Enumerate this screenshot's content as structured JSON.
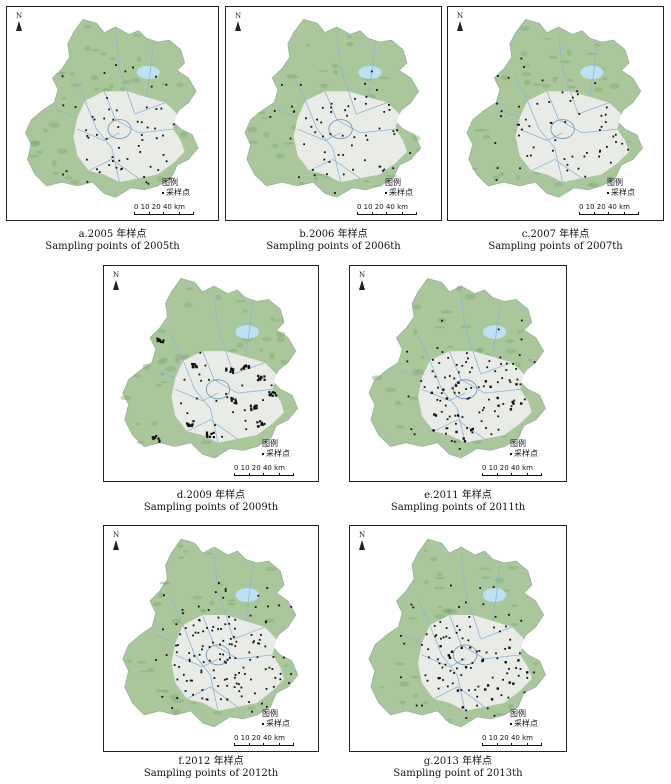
{
  "maps": [
    {
      "id": "a",
      "caption_cn": "a.2005 年样点",
      "caption_en": "Sampling points of 2005th",
      "points": "sparse"
    },
    {
      "id": "b",
      "caption_cn": "b.2006 年样点",
      "caption_en": "Sampling points of 2006th",
      "points": "sparse"
    },
    {
      "id": "c",
      "caption_cn": "c.2007 年样点",
      "caption_en": "Sampling points of 2007th",
      "points": "sparse"
    },
    {
      "id": "d",
      "caption_cn": "d.2009 年样点",
      "caption_en": "Sampling points of 2009th",
      "points": "clustered"
    },
    {
      "id": "e",
      "caption_cn": "e.2011 年样点",
      "caption_en": "Sampling points of 2011th",
      "points": "medium"
    },
    {
      "id": "f",
      "caption_cn": "f.2012 年样点",
      "caption_en": "Sampling points of 2012th",
      "points": "dense"
    },
    {
      "id": "g",
      "caption_cn": "g.2013 年样点",
      "caption_en": "Sampling point of 2013th",
      "points": "medium"
    }
  ],
  "legend": {
    "title": "图例",
    "item": "采样点"
  },
  "scale": {
    "labels": "0 10 20    40 km"
  },
  "north": {
    "label": "N"
  },
  "colors": {
    "mountain": "#a9c79a",
    "mountain_dark": "#7fa874",
    "plain": "#e8ebe6",
    "water": "#bde0f2",
    "boundary": "#8fb4d6",
    "points": "#111111"
  }
}
